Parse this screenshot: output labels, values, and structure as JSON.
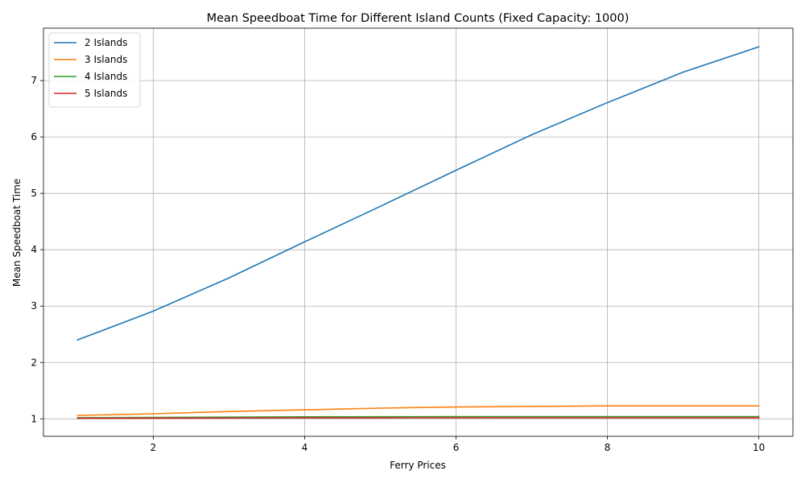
{
  "chart_data": {
    "type": "line",
    "title": "Mean Speedboat Time for Different Island Counts (Fixed Capacity: 1000)",
    "xlabel": "Ferry Prices",
    "ylabel": "Mean Speedboat Time",
    "x": [
      1,
      2,
      3,
      4,
      5,
      6,
      7,
      8,
      9,
      10
    ],
    "xlim": [
      0.55,
      10.45
    ],
    "ylim": [
      0.69,
      7.93
    ],
    "xticks": [
      2,
      4,
      6,
      8,
      10
    ],
    "yticks": [
      1,
      2,
      3,
      4,
      5,
      6,
      7
    ],
    "grid": true,
    "legend_position": "upper-left",
    "series": [
      {
        "name": "2 Islands",
        "color": "#1f77b4",
        "values": [
          2.4,
          2.91,
          3.5,
          4.14,
          4.77,
          5.41,
          6.04,
          6.61,
          7.15,
          7.6
        ]
      },
      {
        "name": "3 Islands",
        "color": "#ff7f0e",
        "values": [
          1.06,
          1.09,
          1.13,
          1.16,
          1.19,
          1.21,
          1.22,
          1.23,
          1.23,
          1.23
        ]
      },
      {
        "name": "4 Islands",
        "color": "#2ca02c",
        "values": [
          1.02,
          1.025,
          1.03,
          1.035,
          1.037,
          1.039,
          1.04,
          1.04,
          1.04,
          1.04
        ]
      },
      {
        "name": "5 Islands",
        "color": "#d62728",
        "values": [
          1.01,
          1.012,
          1.015,
          1.017,
          1.018,
          1.019,
          1.02,
          1.02,
          1.02,
          1.02
        ]
      }
    ]
  }
}
